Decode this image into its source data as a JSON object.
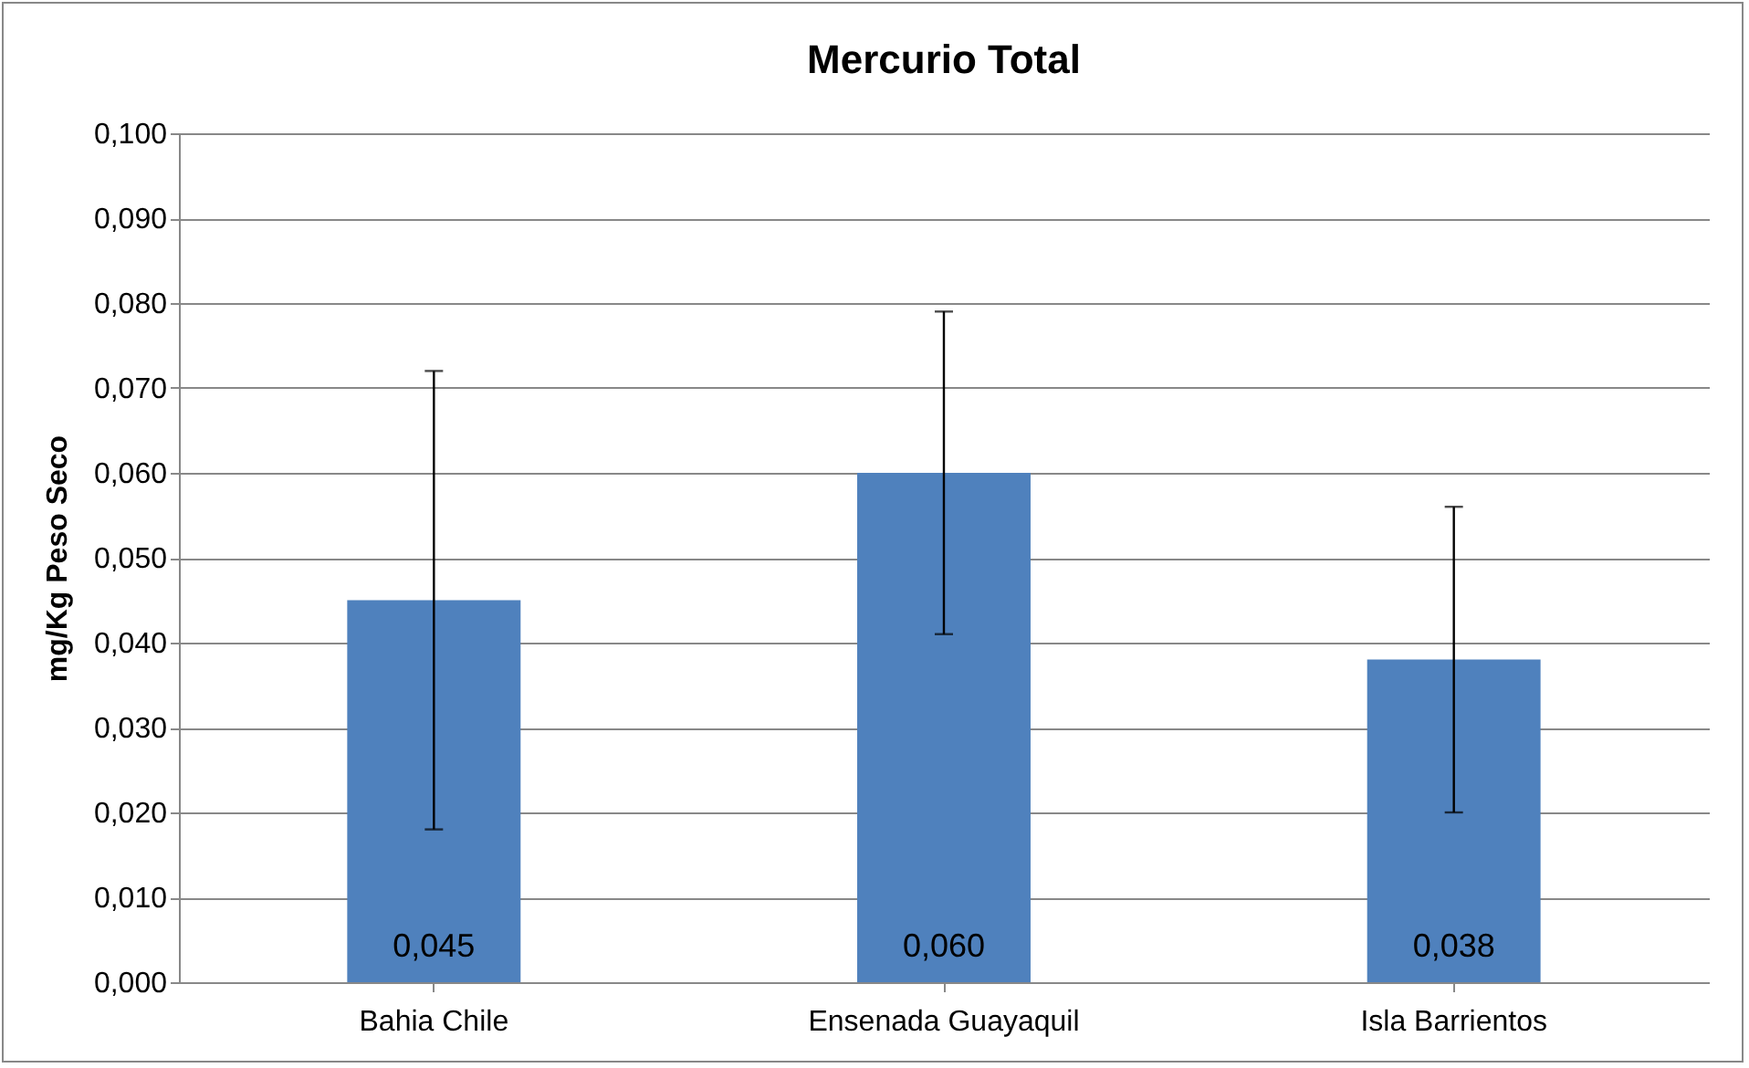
{
  "chart_data": {
    "type": "bar",
    "title": "Mercurio Total",
    "ylabel": "mg/Kg Peso Seco",
    "categories": [
      "Bahia Chile",
      "Ensenada Guayaquil",
      "Isla Barrientos"
    ],
    "values": [
      0.045,
      0.06,
      0.038
    ],
    "errors": [
      0.027,
      0.019,
      0.018
    ],
    "value_labels": [
      "0,045",
      "0,060",
      "0,038"
    ],
    "color": "#4f81bd",
    "ylim": [
      0,
      0.1
    ],
    "yticks": [
      {
        "value": 0,
        "label": "0,000"
      },
      {
        "value": 0.01,
        "label": "0,010"
      },
      {
        "value": 0.02,
        "label": "0,020"
      },
      {
        "value": 0.03,
        "label": "0,030"
      },
      {
        "value": 0.04,
        "label": "0,040"
      },
      {
        "value": 0.05,
        "label": "0,050"
      },
      {
        "value": 0.06,
        "label": "0,060"
      },
      {
        "value": 0.07,
        "label": "0,070"
      },
      {
        "value": 0.08,
        "label": "0,080"
      },
      {
        "value": 0.09,
        "label": "0,090"
      },
      {
        "value": 0.1,
        "label": "0,100"
      }
    ],
    "grid": "y"
  }
}
